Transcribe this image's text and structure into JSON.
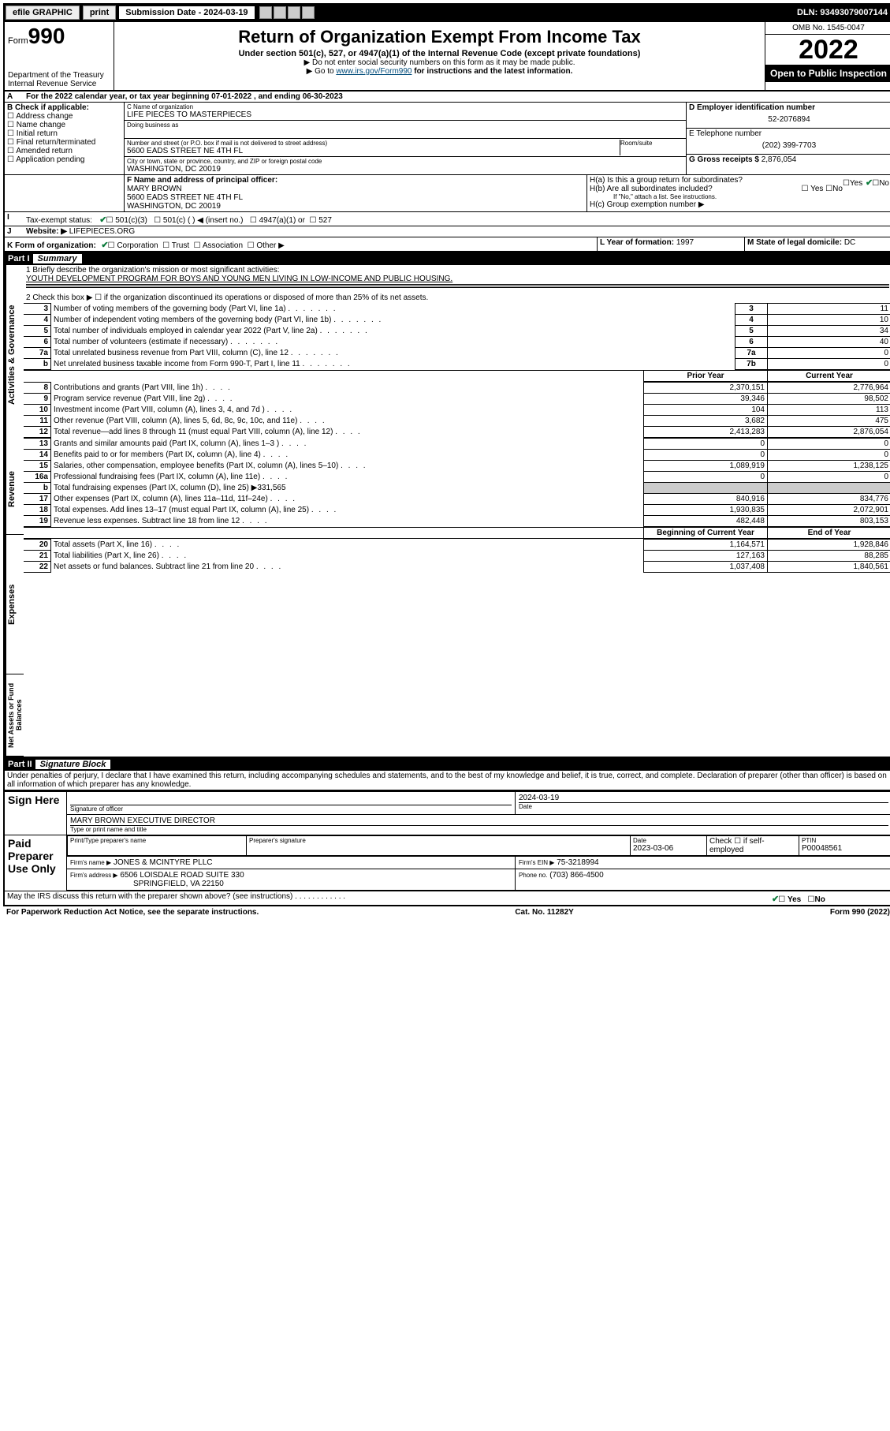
{
  "toolbar": {
    "efile": "efile",
    "graphic": "GRAPHIC",
    "print": "print",
    "submission": "Submission Date - 2024-03-19",
    "dln": "DLN: 93493079007144"
  },
  "header": {
    "form_prefix": "Form",
    "form_number": "990",
    "dept": "Department of the Treasury",
    "irs": "Internal Revenue Service",
    "title": "Return of Organization Exempt From Income Tax",
    "subtitle": "Under section 501(c), 527, or 4947(a)(1) of the Internal Revenue Code (except private foundations)",
    "note1": "▶ Do not enter social security numbers on this form as it may be made public.",
    "note2_pre": "▶ Go to ",
    "note2_link": "www.irs.gov/Form990",
    "note2_post": " for instructions and the latest information.",
    "omb": "OMB No. 1545-0047",
    "year": "2022",
    "inspect": "Open to Public Inspection"
  },
  "periodA": {
    "text": "For the 2022 calendar year, or tax year beginning 07-01-2022   , and ending 06-30-2023"
  },
  "boxB": {
    "label": "B Check if applicable:",
    "opts": [
      "Address change",
      "Name change",
      "Initial return",
      "Final return/terminated",
      "Amended return",
      "Application pending"
    ]
  },
  "boxC": {
    "name_lbl": "C Name of organization",
    "name": "LIFE PIECES TO MASTERPIECES",
    "dba_lbl": "Doing business as",
    "street_lbl": "Number and street (or P.O. box if mail is not delivered to street address)",
    "room_lbl": "Room/suite",
    "street": "5600 EADS STREET NE 4TH FL",
    "city_lbl": "City or town, state or province, country, and ZIP or foreign postal code",
    "city": "WASHINGTON, DC  20019"
  },
  "boxD": {
    "lbl": "D Employer identification number",
    "val": "52-2076894"
  },
  "boxE": {
    "lbl": "E Telephone number",
    "val": "(202) 399-7703"
  },
  "boxG": {
    "lbl": "G Gross receipts $",
    "val": "2,876,054"
  },
  "boxF": {
    "lbl": "F Name and address of principal officer:",
    "name": "MARY BROWN",
    "addr1": "5600 EADS STREET NE 4TH FL",
    "addr2": "WASHINGTON, DC  20019"
  },
  "boxH": {
    "ha": "H(a)  Is this a group return for subordinates?",
    "hb": "H(b)  Are all subordinates included?",
    "hb_note": "If \"No,\" attach a list. See instructions.",
    "hc": "H(c)  Group exemption number ▶",
    "yes": "Yes",
    "no": "No"
  },
  "boxI": {
    "lbl": "Tax-exempt status:",
    "o1": "501(c)(3)",
    "o2": "501(c) (   ) ◀ (insert no.)",
    "o3": "4947(a)(1) or",
    "o4": "527"
  },
  "boxJ": {
    "lbl": "Website: ▶",
    "val": "LIFEPIECES.ORG"
  },
  "boxK": {
    "lbl": "K Form of organization:",
    "opts": [
      "Corporation",
      "Trust",
      "Association",
      "Other ▶"
    ]
  },
  "boxL": {
    "lbl": "L Year of formation:",
    "val": "1997"
  },
  "boxM": {
    "lbl": "M State of legal domicile:",
    "val": "DC"
  },
  "part1": {
    "title": "Part I",
    "subtitle": "Summary",
    "line1_lbl": "1  Briefly describe the organization's mission or most significant activities:",
    "line1_val": "YOUTH DEVELOPMENT PROGRAM FOR BOYS AND YOUNG MEN LIVING IN LOW-INCOME AND PUBLIC HOUSING.",
    "line2": "2   Check this box ▶ ☐  if the organization discontinued its operations or disposed of more than 25% of its net assets.",
    "gov_rows": [
      {
        "n": "3",
        "t": "Number of voting members of the governing body (Part VI, line 1a)",
        "box": "3",
        "v": "11"
      },
      {
        "n": "4",
        "t": "Number of independent voting members of the governing body (Part VI, line 1b)",
        "box": "4",
        "v": "10"
      },
      {
        "n": "5",
        "t": "Total number of individuals employed in calendar year 2022 (Part V, line 2a)",
        "box": "5",
        "v": "34"
      },
      {
        "n": "6",
        "t": "Total number of volunteers (estimate if necessary)",
        "box": "6",
        "v": "40"
      },
      {
        "n": "7a",
        "t": "Total unrelated business revenue from Part VIII, column (C), line 12",
        "box": "7a",
        "v": "0"
      },
      {
        "n": "b",
        "t": "Net unrelated business taxable income from Form 990-T, Part I, line 11",
        "box": "7b",
        "v": "0"
      }
    ],
    "col_prior": "Prior Year",
    "col_curr": "Current Year",
    "rev_rows": [
      {
        "n": "8",
        "t": "Contributions and grants (Part VIII, line 1h)",
        "p": "2,370,151",
        "c": "2,776,964"
      },
      {
        "n": "9",
        "t": "Program service revenue (Part VIII, line 2g)",
        "p": "39,346",
        "c": "98,502"
      },
      {
        "n": "10",
        "t": "Investment income (Part VIII, column (A), lines 3, 4, and 7d )",
        "p": "104",
        "c": "113"
      },
      {
        "n": "11",
        "t": "Other revenue (Part VIII, column (A), lines 5, 6d, 8c, 9c, 10c, and 11e)",
        "p": "3,682",
        "c": "475"
      },
      {
        "n": "12",
        "t": "Total revenue—add lines 8 through 11 (must equal Part VIII, column (A), line 12)",
        "p": "2,413,283",
        "c": "2,876,054"
      }
    ],
    "exp_rows": [
      {
        "n": "13",
        "t": "Grants and similar amounts paid (Part IX, column (A), lines 1–3 )",
        "p": "0",
        "c": "0"
      },
      {
        "n": "14",
        "t": "Benefits paid to or for members (Part IX, column (A), line 4)",
        "p": "0",
        "c": "0"
      },
      {
        "n": "15",
        "t": "Salaries, other compensation, employee benefits (Part IX, column (A), lines 5–10)",
        "p": "1,089,919",
        "c": "1,238,125"
      },
      {
        "n": "16a",
        "t": "Professional fundraising fees (Part IX, column (A), line 11e)",
        "p": "0",
        "c": "0"
      },
      {
        "n": "b",
        "t": "Total fundraising expenses (Part IX, column (D), line 25) ▶331,565",
        "p": "",
        "c": ""
      },
      {
        "n": "17",
        "t": "Other expenses (Part IX, column (A), lines 11a–11d, 11f–24e)",
        "p": "840,916",
        "c": "834,776"
      },
      {
        "n": "18",
        "t": "Total expenses. Add lines 13–17 (must equal Part IX, column (A), line 25)",
        "p": "1,930,835",
        "c": "2,072,901"
      },
      {
        "n": "19",
        "t": "Revenue less expenses. Subtract line 18 from line 12",
        "p": "482,448",
        "c": "803,153"
      }
    ],
    "col_begin": "Beginning of Current Year",
    "col_end": "End of Year",
    "net_rows": [
      {
        "n": "20",
        "t": "Total assets (Part X, line 16)",
        "p": "1,164,571",
        "c": "1,928,846"
      },
      {
        "n": "21",
        "t": "Total liabilities (Part X, line 26)",
        "p": "127,163",
        "c": "88,285"
      },
      {
        "n": "22",
        "t": "Net assets or fund balances. Subtract line 21 from line 20",
        "p": "1,037,408",
        "c": "1,840,561"
      }
    ]
  },
  "vtabs": {
    "gov": "Activities & Governance",
    "rev": "Revenue",
    "exp": "Expenses",
    "net": "Net Assets or Fund Balances"
  },
  "part2": {
    "title": "Part II",
    "subtitle": "Signature Block",
    "decl": "Under penalties of perjury, I declare that I have examined this return, including accompanying schedules and statements, and to the best of my knowledge and belief, it is true, correct, and complete. Declaration of preparer (other than officer) is based on all information of which preparer has any knowledge.",
    "sign_here": "Sign Here",
    "sig_lbl": "Signature of officer",
    "date_lbl": "Date",
    "sig_date": "2024-03-19",
    "officer": "MARY BROWN  EXECUTIVE DIRECTOR",
    "officer_lbl": "Type or print name and title",
    "paid": "Paid Preparer Use Only",
    "prep_name_lbl": "Print/Type preparer's name",
    "prep_sig_lbl": "Preparer's signature",
    "prep_date_lbl": "Date",
    "prep_date": "2023-03-06",
    "self_lbl": "Check ☐ if self-employed",
    "ptin_lbl": "PTIN",
    "ptin": "P00048561",
    "firm_name_lbl": "Firm's name   ▶",
    "firm_name": "JONES & MCINTYRE PLLC",
    "firm_ein_lbl": "Firm's EIN ▶",
    "firm_ein": "75-3218994",
    "firm_addr_lbl": "Firm's address ▶",
    "firm_addr1": "6506 LOISDALE ROAD SUITE 330",
    "firm_addr2": "SPRINGFIELD, VA  22150",
    "phone_lbl": "Phone no.",
    "phone": "(703) 866-4500",
    "discuss": "May the IRS discuss this return with the preparer shown above? (see instructions)",
    "yes": "Yes",
    "no": "No"
  },
  "footer": {
    "left": "For Paperwork Reduction Act Notice, see the separate instructions.",
    "mid": "Cat. No. 11282Y",
    "right": "Form 990 (2022)"
  }
}
